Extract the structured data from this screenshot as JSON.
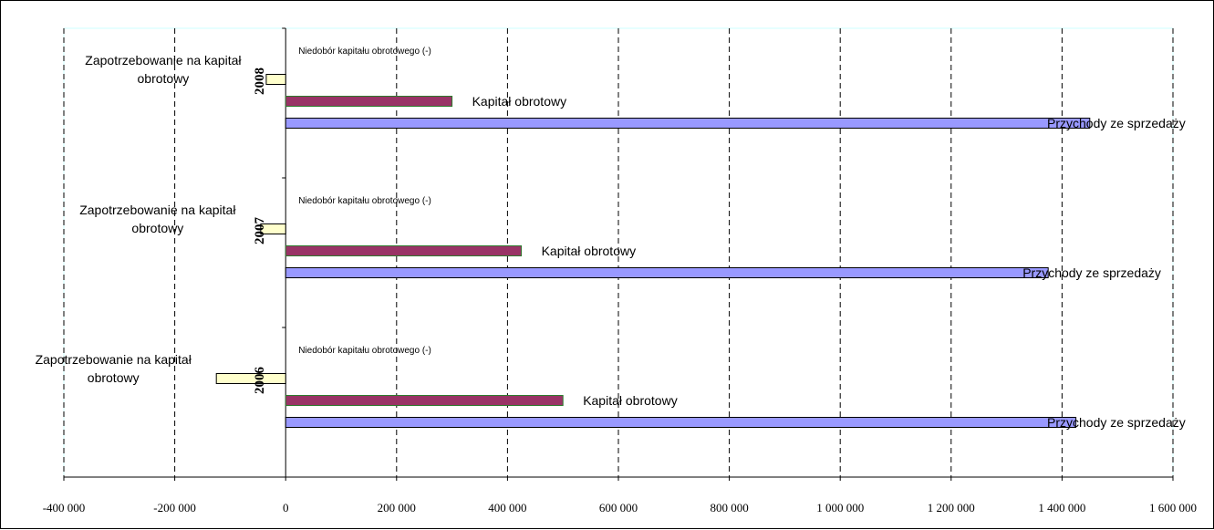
{
  "chart_data": {
    "type": "bar",
    "orientation": "horizontal",
    "xlim": [
      -400000,
      1600000
    ],
    "x_ticks": [
      -400000,
      -200000,
      0,
      200000,
      400000,
      600000,
      800000,
      1000000,
      1200000,
      1400000,
      1600000
    ],
    "x_tick_labels": [
      "-400 000",
      "-200 000",
      "0",
      "200 000",
      "400 000",
      "600 000",
      "800 000",
      "1 000 000",
      "1 200 000",
      "1 400 000",
      "1 600 000"
    ],
    "grid": "vertical dashed",
    "categories": [
      "2008",
      "2007",
      "2006"
    ],
    "series": [
      {
        "name": "Niedobór kapitału obrotowego (-)",
        "color": "#ffffff",
        "values": [
          0,
          0,
          0
        ]
      },
      {
        "name": "Zapotrzebowanie na kapitał obrotowy",
        "color": "#ffffcc",
        "values": [
          -35000,
          -45000,
          -125000
        ]
      },
      {
        "name": "Kapitał obrotowy",
        "color": "#993366",
        "values": [
          300000,
          425000,
          500000
        ]
      },
      {
        "name": "Przychody ze sprzedaży",
        "color": "#9999ff",
        "values": [
          1450000,
          1375000,
          1425000
        ]
      }
    ]
  }
}
